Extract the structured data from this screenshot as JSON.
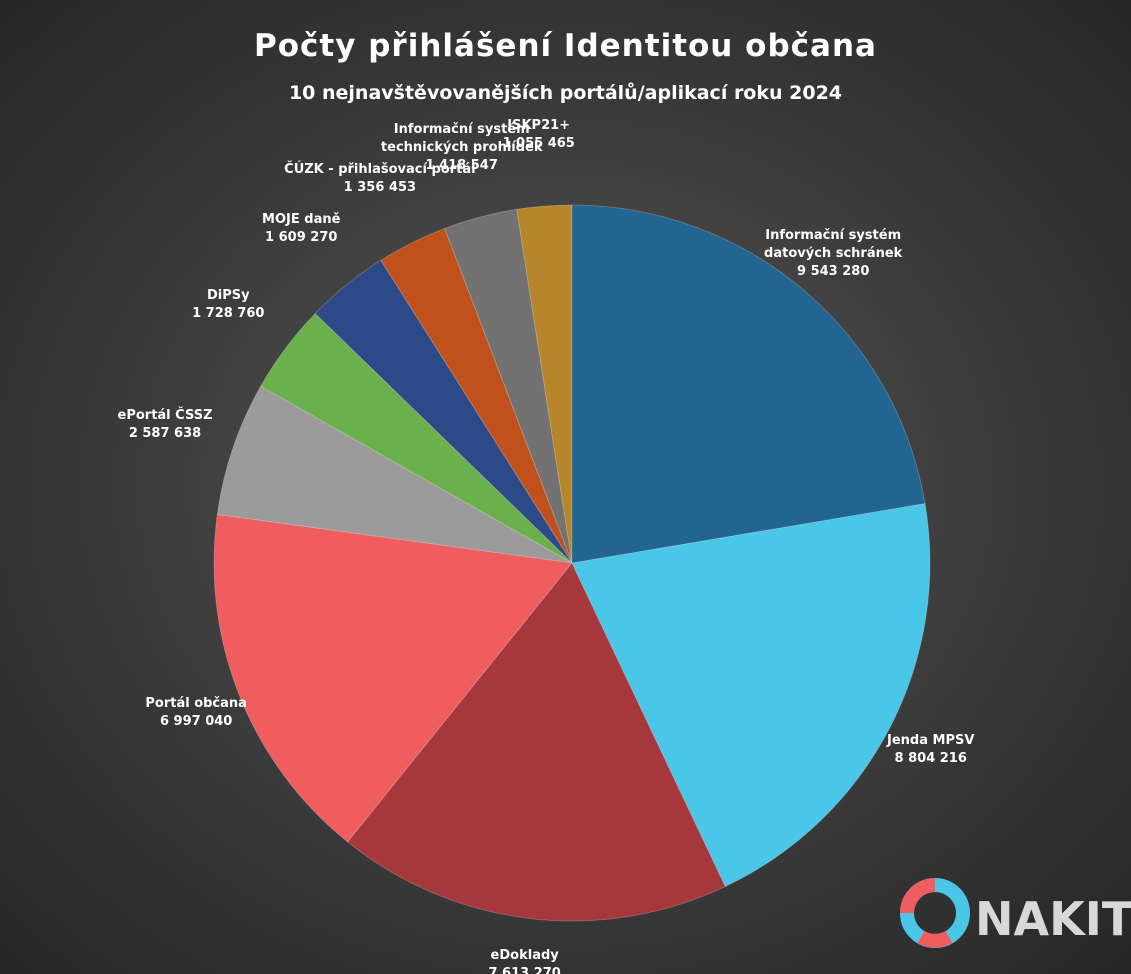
{
  "chart_data": {
    "type": "pie",
    "title": "Počty přihlášení Identitou občana",
    "subtitle": "10 nejnavštěvovanějších portálů/aplikací roku 2024",
    "categories": [
      "Informační systém\ndatových schránek",
      "Jenda MPSV",
      "eDoklady",
      "Portál občana",
      "ePortál ČSSZ",
      "DiPSy",
      "MOJE daně",
      "ČÚZK - přihlašovací portál",
      "Informační systém\ntechnických prohlídek",
      "ISKP21+"
    ],
    "values": [
      9543280,
      8804216,
      7613270,
      6997040,
      2587638,
      1728760,
      1609270,
      1356453,
      1418547,
      1055465
    ],
    "value_labels": [
      "9 543 280",
      "8 804 216",
      "7 613 270",
      "6 997 040",
      "2 587 638",
      "1 728 760",
      "1 609 270",
      "1 356 453",
      "1 418 547",
      "1 055 465"
    ],
    "colors": [
      "#236591",
      "#4ac6e8",
      "#a6373c",
      "#f05d5e",
      "#9b9b9b",
      "#6ab04c",
      "#2c4a88",
      "#c0501c",
      "#727272",
      "#b8862a"
    ]
  },
  "logo": "NAKIT"
}
